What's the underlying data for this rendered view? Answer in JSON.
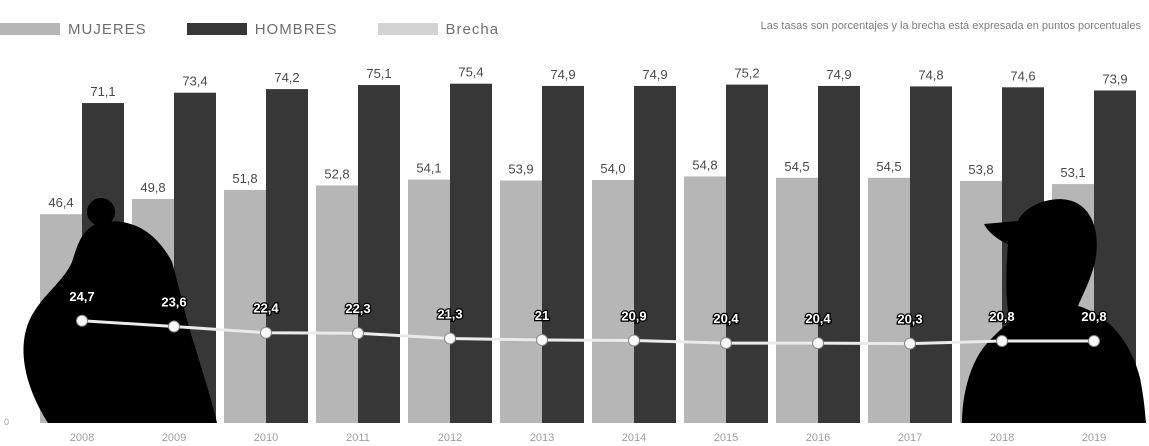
{
  "legend": {
    "women": "MUJERES",
    "men": "HOMBRES",
    "gap": "Brecha"
  },
  "note": "Las tasas son porcentajes y la brecha está expresada en puntos porcentuales",
  "colors": {
    "women": "#b3b3b3",
    "men": "#3a3a3a",
    "gap_line": "#e6e6e6",
    "gap_point": "#f2f2f2",
    "silhouette": "#000000",
    "label": "#4a4a4a"
  },
  "chart_data": {
    "type": "bar",
    "title": "",
    "xlabel": "",
    "ylabel": "",
    "ylim": [
      0,
      80
    ],
    "grid": false,
    "legend_position": "top-left",
    "categories": [
      "2008",
      "2009",
      "2010",
      "2011",
      "2012",
      "2013",
      "2014",
      "2015",
      "2016",
      "2017",
      "2018",
      "2019"
    ],
    "series": [
      {
        "name": "MUJERES",
        "type": "bar",
        "values": [
          46.4,
          49.8,
          51.8,
          52.8,
          54.1,
          53.9,
          54.0,
          54.8,
          54.5,
          54.5,
          53.8,
          53.1
        ],
        "labels": [
          "46,4",
          "49,8",
          "51,8",
          "52,8",
          "54,1",
          "53,9",
          "54,0",
          "54,8",
          "54,5",
          "54,5",
          "53,8",
          "53,1"
        ]
      },
      {
        "name": "HOMBRES",
        "type": "bar",
        "values": [
          71.1,
          73.4,
          74.2,
          75.1,
          75.4,
          74.9,
          74.9,
          75.2,
          74.9,
          74.8,
          74.6,
          73.9
        ],
        "labels": [
          "71,1",
          "73,4",
          "74,2",
          "75,1",
          "75,4",
          "74,9",
          "74,9",
          "75,2",
          "74,9",
          "74,8",
          "74,6",
          "73,9"
        ]
      },
      {
        "name": "Brecha",
        "type": "line",
        "values": [
          24.7,
          23.6,
          22.4,
          22.3,
          21.3,
          21,
          20.9,
          20.4,
          20.4,
          20.3,
          20.8,
          20.8
        ],
        "labels": [
          "24,7",
          "23,6",
          "22,4",
          "22,3",
          "21,3",
          "21",
          "20,9",
          "20,4",
          "20,4",
          "20,3",
          "20,8",
          "20,8"
        ]
      }
    ],
    "y_axis_tick": "0"
  }
}
